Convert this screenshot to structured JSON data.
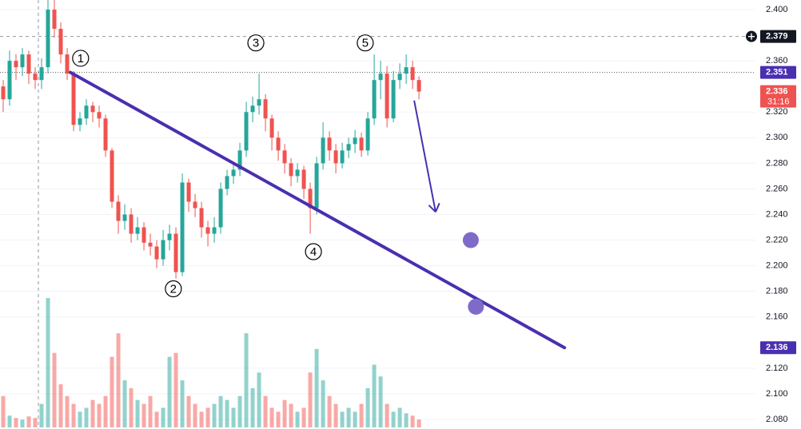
{
  "chart_data": {
    "type": "candlestick",
    "ylim": [
      2.0725,
      2.4075
    ],
    "xlim": [
      -0.5,
      117.6
    ],
    "yticks": [
      {
        "value": 2.4,
        "label": "2.400"
      },
      {
        "value": 2.36,
        "label": "2.360"
      },
      {
        "value": 2.32,
        "label": "2.320"
      },
      {
        "value": 2.3,
        "label": "2.300"
      },
      {
        "value": 2.28,
        "label": "2.280"
      },
      {
        "value": 2.26,
        "label": "2.260"
      },
      {
        "value": 2.24,
        "label": "2.240"
      },
      {
        "value": 2.22,
        "label": "2.220"
      },
      {
        "value": 2.2,
        "label": "2.200"
      },
      {
        "value": 2.18,
        "label": "2.180"
      },
      {
        "value": 2.16,
        "label": "2.160"
      },
      {
        "value": 2.12,
        "label": "2.120"
      },
      {
        "value": 2.1,
        "label": "2.100"
      },
      {
        "value": 2.08,
        "label": "2.080"
      }
    ],
    "grid": true,
    "up_color": "#26a69a",
    "down_color": "#ef5350",
    "open": [
      2.34,
      2.33,
      2.36,
      2.355,
      2.365,
      2.35,
      2.345,
      2.355,
      2.4,
      2.385,
      2.365,
      2.35,
      2.31,
      2.315,
      2.325,
      2.32,
      2.315,
      2.29,
      2.25,
      2.235,
      2.24,
      2.225,
      2.23,
      2.218,
      2.215,
      2.205,
      2.22,
      2.225,
      2.195,
      2.265,
      2.25,
      2.245,
      2.23,
      2.225,
      2.23,
      2.26,
      2.27,
      2.275,
      2.29,
      2.32,
      2.325,
      2.33,
      2.315,
      2.3,
      2.29,
      2.28,
      2.27,
      2.275,
      2.26,
      2.245,
      2.28,
      2.3,
      2.29,
      2.28,
      2.29,
      2.295,
      2.3,
      2.29,
      2.315,
      2.345,
      2.35,
      2.315,
      2.345,
      2.35,
      2.355,
      2.345
    ],
    "high": [
      2.345,
      2.368,
      2.365,
      2.37,
      2.368,
      2.355,
      2.362,
      2.42,
      2.41,
      2.39,
      2.37,
      2.352,
      2.32,
      2.33,
      2.328,
      2.325,
      2.318,
      2.292,
      2.255,
      2.248,
      2.245,
      2.238,
      2.234,
      2.225,
      2.22,
      2.228,
      2.232,
      2.23,
      2.272,
      2.268,
      2.256,
      2.25,
      2.235,
      2.238,
      2.265,
      2.275,
      2.28,
      2.296,
      2.328,
      2.332,
      2.35,
      2.334,
      2.318,
      2.305,
      2.295,
      2.284,
      2.28,
      2.278,
      2.265,
      2.285,
      2.312,
      2.305,
      2.295,
      2.296,
      2.3,
      2.306,
      2.304,
      2.32,
      2.365,
      2.36,
      2.356,
      2.352,
      2.358,
      2.365,
      2.36,
      2.348
    ],
    "low": [
      2.32,
      2.325,
      2.345,
      2.348,
      2.342,
      2.338,
      2.338,
      2.35,
      2.378,
      2.358,
      2.345,
      2.305,
      2.305,
      2.31,
      2.312,
      2.308,
      2.285,
      2.245,
      2.225,
      2.228,
      2.218,
      2.22,
      2.212,
      2.208,
      2.198,
      2.2,
      2.212,
      2.19,
      2.192,
      2.242,
      2.238,
      2.222,
      2.215,
      2.218,
      2.225,
      2.255,
      2.264,
      2.27,
      2.285,
      2.312,
      2.318,
      2.305,
      2.29,
      2.282,
      2.272,
      2.262,
      2.265,
      2.252,
      2.225,
      2.24,
      2.275,
      2.282,
      2.272,
      2.276,
      2.284,
      2.288,
      2.285,
      2.286,
      2.31,
      2.33,
      2.308,
      2.312,
      2.338,
      2.342,
      2.338,
      2.33
    ],
    "close": [
      2.33,
      2.36,
      2.355,
      2.365,
      2.35,
      2.345,
      2.355,
      2.4,
      2.385,
      2.365,
      2.35,
      2.31,
      2.315,
      2.325,
      2.32,
      2.315,
      2.29,
      2.25,
      2.235,
      2.24,
      2.225,
      2.23,
      2.218,
      2.215,
      2.205,
      2.22,
      2.225,
      2.195,
      2.265,
      2.25,
      2.245,
      2.23,
      2.225,
      2.23,
      2.26,
      2.27,
      2.275,
      2.29,
      2.32,
      2.325,
      2.33,
      2.315,
      2.3,
      2.29,
      2.28,
      2.27,
      2.275,
      2.26,
      2.245,
      2.28,
      2.3,
      2.29,
      2.28,
      2.29,
      2.295,
      2.3,
      2.29,
      2.315,
      2.345,
      2.35,
      2.315,
      2.345,
      2.35,
      2.355,
      2.345,
      2.336
    ],
    "volume": [
      40,
      15,
      12,
      10,
      14,
      12,
      30,
      165,
      95,
      55,
      40,
      30,
      20,
      25,
      35,
      30,
      40,
      90,
      120,
      60,
      50,
      35,
      30,
      40,
      20,
      25,
      90,
      95,
      60,
      40,
      30,
      20,
      25,
      30,
      40,
      35,
      25,
      40,
      120,
      50,
      70,
      40,
      25,
      20,
      35,
      30,
      20,
      25,
      70,
      100,
      60,
      40,
      30,
      20,
      25,
      20,
      30,
      50,
      80,
      65,
      30,
      20,
      25,
      18,
      15,
      10
    ],
    "trendline": {
      "color": "#4a2fb0",
      "x": [
        10.5,
        87.75
      ],
      "y": [
        2.351,
        2.136
      ]
    },
    "arrow": {
      "color": "#4a2fb0",
      "x": [
        64.25,
        67.6
      ],
      "y": [
        2.329,
        2.242
      ]
    },
    "dots": {
      "color": "#7e6bc9",
      "x": [
        73.1,
        73.9
      ],
      "y": [
        2.22,
        2.168
      ]
    },
    "crosshair": {
      "x": 5.5,
      "y": 2.379
    },
    "waves": [
      {
        "label": "1",
        "x": 12.1,
        "y": 2.362
      },
      {
        "label": "2",
        "x": 26.6,
        "y": 2.182
      },
      {
        "label": "3",
        "x": 39.5,
        "y": 2.374
      },
      {
        "label": "4",
        "x": 48.5,
        "y": 2.211
      },
      {
        "label": "5",
        "x": 56.6,
        "y": 2.374
      }
    ],
    "price_labels": [
      {
        "value": 2.379,
        "label": "2.379",
        "color": "#131722"
      },
      {
        "value": 2.351,
        "label": "2.351",
        "color": "#4a2fb0"
      },
      {
        "value": 2.336,
        "label": "2.336",
        "color": "#ef5350",
        "countdown": "31:16"
      },
      {
        "value": 2.136,
        "label": "2.136",
        "color": "#4a2fb0"
      }
    ]
  }
}
